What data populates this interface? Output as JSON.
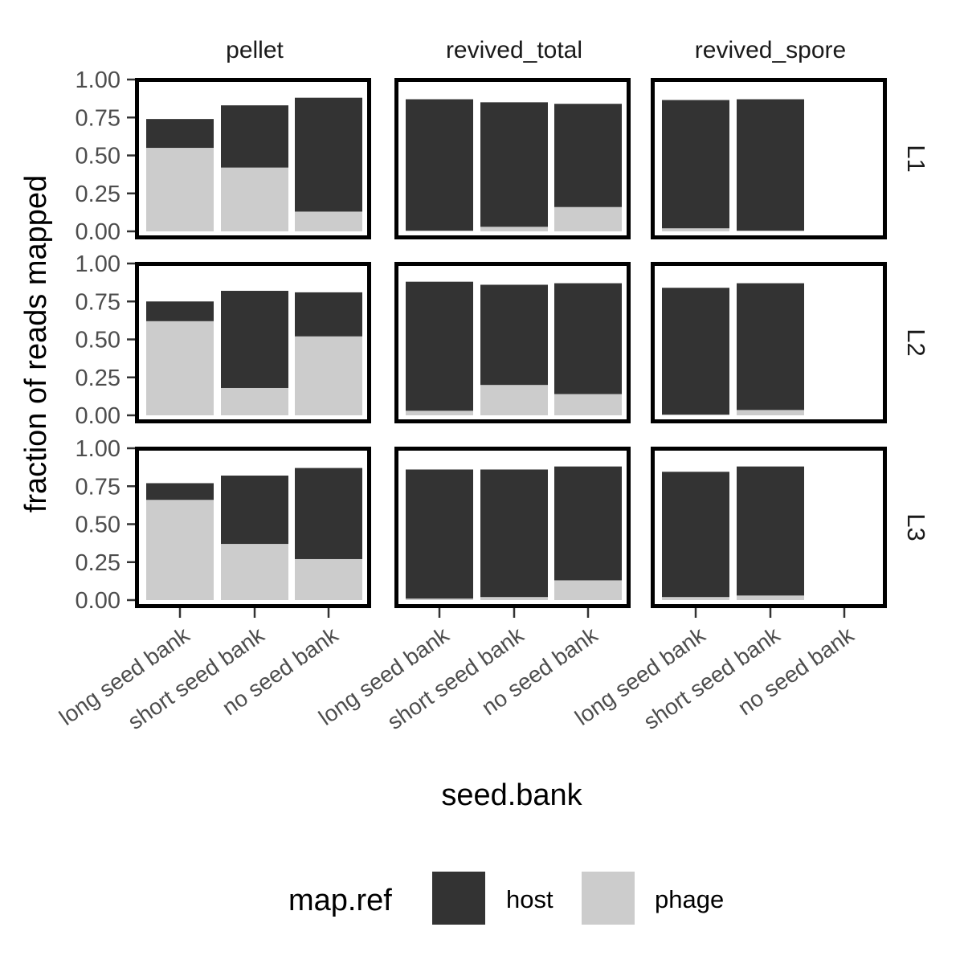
{
  "chart_data": {
    "type": "bar",
    "stacked": true,
    "xlabel": "seed.bank",
    "ylabel": "fraction of reads mapped",
    "ylim": [
      0,
      1
    ],
    "yticks": [
      "0.00",
      "0.25",
      "0.50",
      "0.75",
      "1.00"
    ],
    "categories": [
      "long seed bank",
      "short seed bank",
      "no seed bank"
    ],
    "col_facets": [
      "pellet",
      "revived_total",
      "revived_spore"
    ],
    "row_facets": [
      "L1",
      "L2",
      "L3"
    ],
    "grid": false,
    "legend": {
      "title": "map.ref",
      "position": "bottom",
      "entries": [
        {
          "name": "host",
          "color": "#333333"
        },
        {
          "name": "phage",
          "color": "#cccccc"
        }
      ]
    },
    "panels": [
      {
        "row": "L1",
        "col": "pellet",
        "phage": [
          0.55,
          0.42,
          0.13
        ],
        "host": [
          0.19,
          0.41,
          0.75
        ]
      },
      {
        "row": "L1",
        "col": "revived_total",
        "phage": [
          0.005,
          0.03,
          0.16
        ],
        "host": [
          0.865,
          0.82,
          0.68
        ]
      },
      {
        "row": "L1",
        "col": "revived_spore",
        "phage": [
          0.02,
          0.005,
          null
        ],
        "host": [
          0.845,
          0.865,
          null
        ]
      },
      {
        "row": "L2",
        "col": "pellet",
        "phage": [
          0.62,
          0.18,
          0.52
        ],
        "host": [
          0.13,
          0.64,
          0.29
        ]
      },
      {
        "row": "L2",
        "col": "revived_total",
        "phage": [
          0.03,
          0.2,
          0.14
        ],
        "host": [
          0.85,
          0.66,
          0.73
        ]
      },
      {
        "row": "L2",
        "col": "revived_spore",
        "phage": [
          0.005,
          0.035,
          null
        ],
        "host": [
          0.835,
          0.835,
          null
        ]
      },
      {
        "row": "L3",
        "col": "pellet",
        "phage": [
          0.66,
          0.37,
          0.27
        ],
        "host": [
          0.11,
          0.45,
          0.6
        ]
      },
      {
        "row": "L3",
        "col": "revived_total",
        "phage": [
          0.01,
          0.02,
          0.13
        ],
        "host": [
          0.85,
          0.84,
          0.75
        ]
      },
      {
        "row": "L3",
        "col": "revived_spore",
        "phage": [
          0.02,
          0.03,
          null
        ],
        "host": [
          0.825,
          0.85,
          null
        ]
      }
    ]
  }
}
